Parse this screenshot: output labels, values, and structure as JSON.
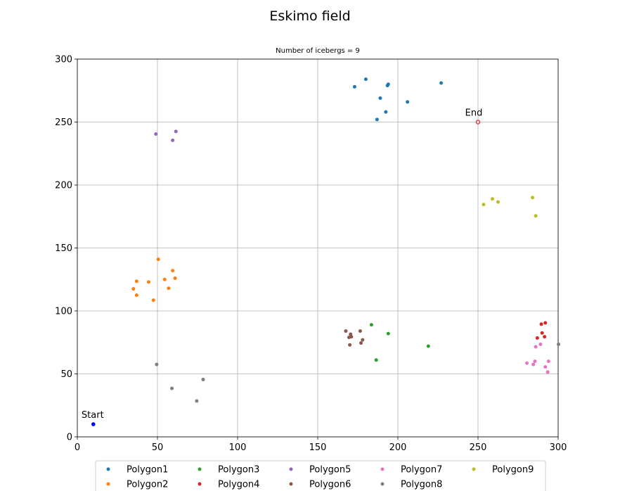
{
  "chart_data": {
    "type": "scatter",
    "title": "Eskimo field",
    "subtitle": "Number of icebergs = 9",
    "xlim": [
      0,
      300
    ],
    "ylim": [
      0,
      300
    ],
    "xticks": [
      0,
      50,
      100,
      150,
      200,
      250,
      300
    ],
    "yticks": [
      0,
      50,
      100,
      150,
      200,
      250,
      300
    ],
    "grid": true,
    "legend_position": "bottom-center",
    "legend_columns": 5,
    "series": [
      {
        "name": "Polygon1",
        "color": "#1f77b4",
        "points": [
          [
            173,
            278
          ],
          [
            180,
            284
          ],
          [
            194,
            280
          ],
          [
            193.5,
            279
          ],
          [
            227,
            281
          ],
          [
            189,
            269
          ],
          [
            206,
            266
          ],
          [
            192.5,
            258
          ],
          [
            187,
            252
          ]
        ]
      },
      {
        "name": "Polygon2",
        "color": "#ff7f0e",
        "points": [
          [
            50.5,
            141
          ],
          [
            59.5,
            132
          ],
          [
            61,
            126
          ],
          [
            54.5,
            125
          ],
          [
            37,
            123.5
          ],
          [
            44.5,
            123
          ],
          [
            35,
            117.5
          ],
          [
            57,
            118
          ],
          [
            37,
            112.5
          ],
          [
            47.5,
            108.5
          ]
        ]
      },
      {
        "name": "Polygon3",
        "color": "#2ca02c",
        "points": [
          [
            183.5,
            89
          ],
          [
            194,
            82
          ],
          [
            219,
            72
          ],
          [
            186.5,
            61
          ]
        ]
      },
      {
        "name": "Polygon4",
        "color": "#d62728",
        "points": [
          [
            292,
            90.5
          ],
          [
            289.5,
            89.5
          ],
          [
            290,
            82.5
          ],
          [
            287,
            78.5
          ],
          [
            291.5,
            79.5
          ]
        ]
      },
      {
        "name": "Polygon5",
        "color": "#9467bd",
        "points": [
          [
            61.5,
            242.5
          ],
          [
            49,
            240.5
          ],
          [
            59.5,
            235.5
          ]
        ]
      },
      {
        "name": "Polygon6",
        "color": "#8c564b",
        "points": [
          [
            167.5,
            84
          ],
          [
            176.5,
            84
          ],
          [
            170.5,
            81.5
          ],
          [
            169.5,
            79
          ],
          [
            171,
            79.5
          ],
          [
            178,
            77
          ],
          [
            177,
            74.5
          ],
          [
            170,
            73
          ]
        ]
      },
      {
        "name": "Polygon7",
        "color": "#e377c2",
        "points": [
          [
            289,
            73.5
          ],
          [
            286,
            71.5
          ],
          [
            280.5,
            58.5
          ],
          [
            285.5,
            60
          ],
          [
            294,
            60
          ],
          [
            284.5,
            57.5
          ],
          [
            292,
            55.5
          ],
          [
            293.5,
            51.5
          ]
        ]
      },
      {
        "name": "Polygon8",
        "color": "#7f7f7f",
        "points": [
          [
            49.5,
            57.5
          ],
          [
            78.5,
            45.5
          ],
          [
            59,
            38.5
          ],
          [
            74.5,
            28.5
          ],
          [
            301,
            73.5
          ]
        ]
      },
      {
        "name": "Polygon9",
        "color": "#bcbd22",
        "points": [
          [
            284,
            190
          ],
          [
            259,
            189
          ],
          [
            262.5,
            186.5
          ],
          [
            253.5,
            184.5
          ],
          [
            286,
            175.5
          ]
        ]
      }
    ],
    "annotations": [
      {
        "text": "Start",
        "x": 10,
        "y": 10,
        "color": "#0000ff"
      },
      {
        "text": "End",
        "x": 250,
        "y": 250,
        "color": "#d62728"
      }
    ]
  }
}
